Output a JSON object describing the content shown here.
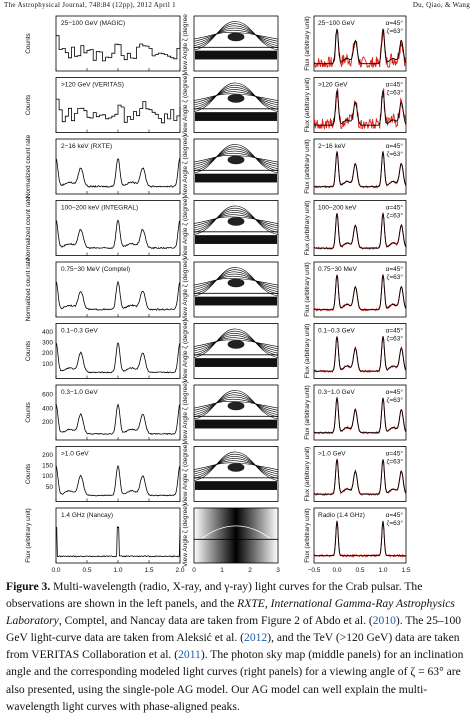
{
  "header": {
    "journal": "The Astrophysical Journal, 748:84 (12pp), 2012 April 1",
    "authors": "Du, Qiao, & Wang"
  },
  "figure": {
    "left_panels": [
      {
        "label": "25−100 GeV (MAGIC)",
        "ylabel": "Counts",
        "yticks": []
      },
      {
        "label": ">120 GeV (VERITAS)",
        "ylabel": "Counts",
        "yticks": []
      },
      {
        "label": "2−16 keV (RXTE)",
        "ylabel": "Normalized count rate",
        "yticks": []
      },
      {
        "label": "100−200 keV (INTEGRAL)",
        "ylabel": "Normalized count rate",
        "yticks": []
      },
      {
        "label": "0.75−30 MeV (Comptel)",
        "ylabel": "Normalized count rate",
        "yticks": []
      },
      {
        "label": "0.1−0.3 GeV",
        "ylabel": "Counts",
        "yticks": [
          "100",
          "200",
          "300",
          "400"
        ]
      },
      {
        "label": "0.3−1.0 GeV",
        "ylabel": "Counts",
        "yticks": [
          "200",
          "400",
          "600"
        ]
      },
      {
        "label": ">1.0 GeV",
        "ylabel": "Counts",
        "yticks": [
          "50",
          "100",
          "150",
          "200"
        ]
      },
      {
        "label": "1.4 GHz (Nancay)",
        "ylabel": "Flux (arbitrary unit)",
        "yticks": []
      }
    ],
    "middle_ylabel": "View Angle ζ (degree)",
    "middle_yticks": [
      "0",
      "30",
      "60",
      "90",
      "120",
      "150",
      "180"
    ],
    "right_panels": [
      {
        "label": "25−100 GeV",
        "alpha": "α=45°",
        "zeta": "ζ=63°"
      },
      {
        "label": ">120 GeV",
        "alpha": "α=45°",
        "zeta": "ζ=63°"
      },
      {
        "label": "2−16 keV",
        "alpha": "α=45°",
        "zeta": "ζ=63°"
      },
      {
        "label": "100−200 keV",
        "alpha": "α=45°",
        "zeta": "ζ=63°"
      },
      {
        "label": "0.75−30 MeV",
        "alpha": "α=45°",
        "zeta": "ζ=63°"
      },
      {
        "label": "0.1−0.3 GeV",
        "alpha": "α=45°",
        "zeta": "ζ=63°"
      },
      {
        "label": "0.3−1.0 GeV",
        "alpha": "α=45°",
        "zeta": "ζ=63°"
      },
      {
        "label": ">1.0 GeV",
        "alpha": "α=45°",
        "zeta": "ζ=63°"
      },
      {
        "label": "Radio (1.4 GHz)",
        "alpha": "α=45°",
        "zeta": "ζ=63°"
      }
    ],
    "right_ylabel": "Flux (arbitrary unit)",
    "left_xticks": [
      "0.0",
      "0.5",
      "1.0",
      "1.5",
      "2.0"
    ],
    "middle_xticks": [
      "0",
      "1",
      "2",
      "3"
    ],
    "right_xticks": [
      "−0.5",
      "0.0",
      "0.5",
      "1.0",
      "1.5"
    ],
    "xlabel": "Pulsar Phase φ"
  },
  "caption": {
    "lead": "Figure 3.",
    "t1": " Multi-wavelength (radio, X-ray, and γ-ray) light curves for the Crab pulsar. The observations are shown in the left panels, and the ",
    "i1": "RXTE, International Gamma-Ray Astrophysics Laboratory",
    "t2": ", Comptel, and Nancay data are taken from Figure 2 of Abdo et al. (",
    "l1": "2010",
    "t3": "). The 25–100 GeV light-curve data are taken from Aleksić et al. (",
    "l2": "2012",
    "t4": "), and the TeV (>120 GeV) data are taken from VERITAS Collaboration et al. (",
    "l3": "2011",
    "t5": "). The photon sky map (middle panels) for an inclination angle and the corresponding modeled light curves (right panels) for a viewing angle of ζ = 63° are also presented, using the single-pole AG model. Our AG model can well explain the multi-wavelength light curves with phase-aligned peaks."
  }
}
